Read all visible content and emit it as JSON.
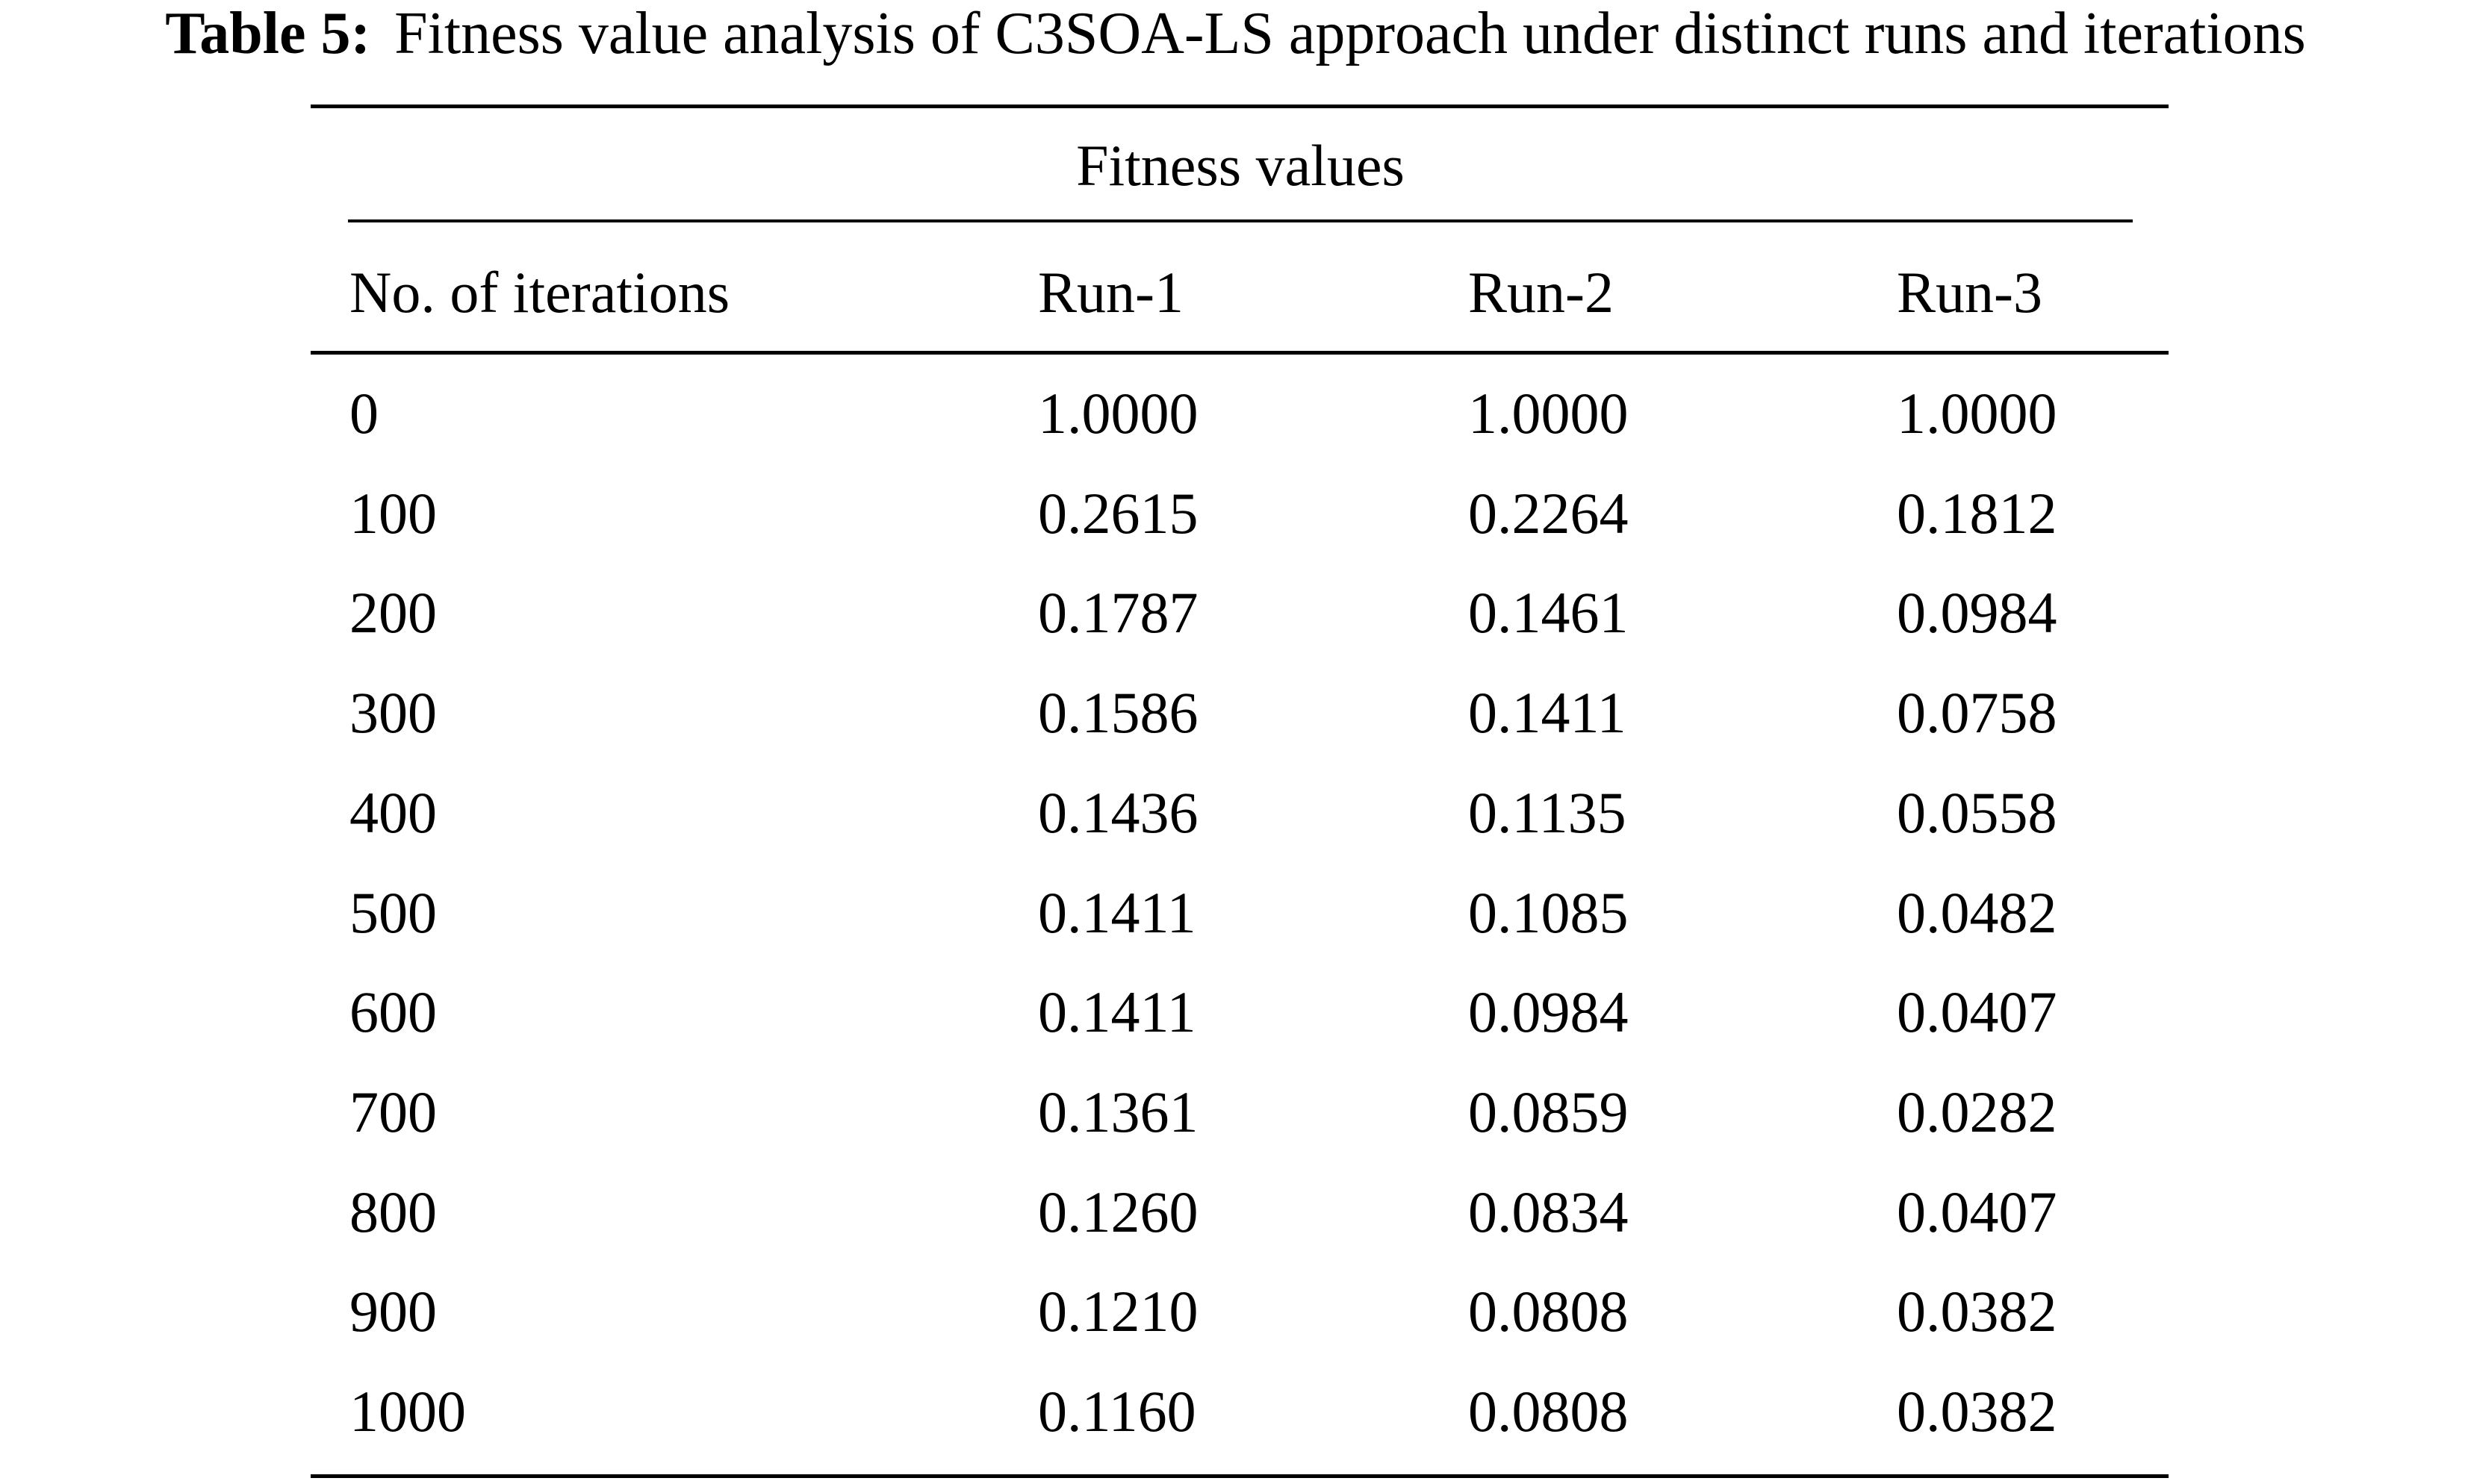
{
  "caption": {
    "label": "Table 5:",
    "text": "Fitness value analysis of C3SOA-LS approach under distinct runs and iterations"
  },
  "table": {
    "group_header": "Fitness values",
    "columns": [
      "No. of iterations",
      "Run-1",
      "Run-2",
      "Run-3"
    ],
    "rows": [
      [
        "0",
        "1.0000",
        "1.0000",
        "1.0000"
      ],
      [
        "100",
        "0.2615",
        "0.2264",
        "0.1812"
      ],
      [
        "200",
        "0.1787",
        "0.1461",
        "0.0984"
      ],
      [
        "300",
        "0.1586",
        "0.1411",
        "0.0758"
      ],
      [
        "400",
        "0.1436",
        "0.1135",
        "0.0558"
      ],
      [
        "500",
        "0.1411",
        "0.1085",
        "0.0482"
      ],
      [
        "600",
        "0.1411",
        "0.0984",
        "0.0407"
      ],
      [
        "700",
        "0.1361",
        "0.0859",
        "0.0282"
      ],
      [
        "800",
        "0.1260",
        "0.0834",
        "0.0407"
      ],
      [
        "900",
        "0.1210",
        "0.0808",
        "0.0382"
      ],
      [
        "1000",
        "0.1160",
        "0.0808",
        "0.0382"
      ]
    ]
  }
}
